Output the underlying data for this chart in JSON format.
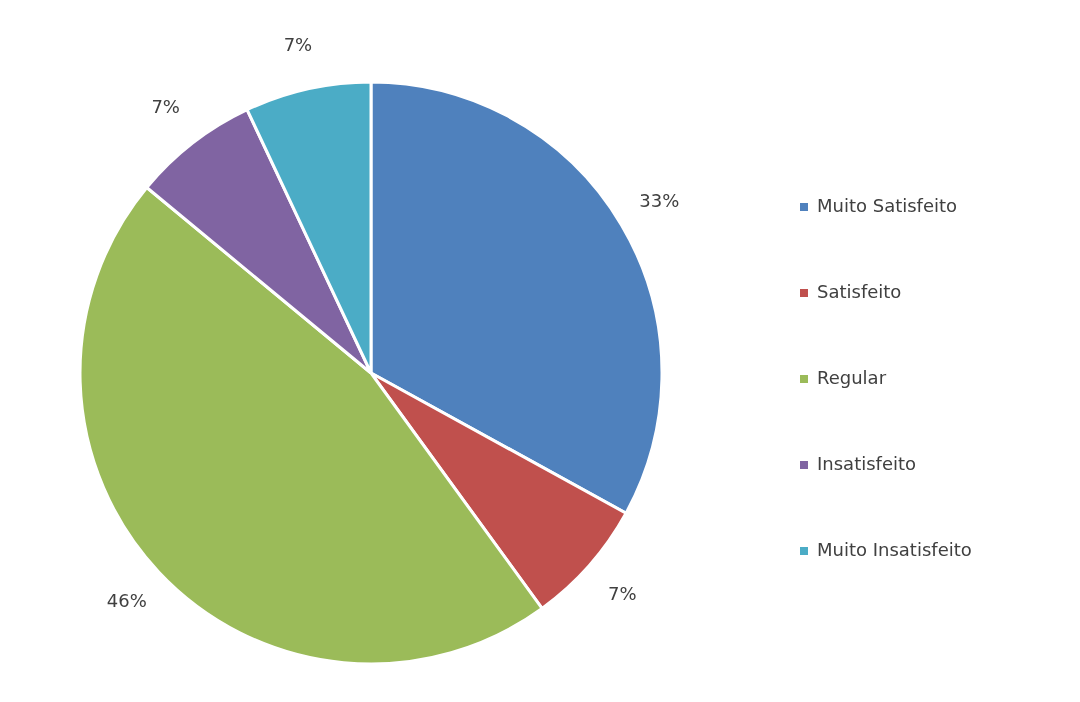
{
  "chart_data": {
    "type": "pie",
    "categories": [
      "Muito Satisfeito",
      "Satisfeito",
      "Regular",
      "Insatisfeito",
      "Muito Insatisfeito"
    ],
    "values": [
      33,
      7,
      46,
      7,
      7
    ],
    "colors": [
      "#4f81bd",
      "#c0504d",
      "#9bbb59",
      "#8064a2",
      "#4bacc6"
    ],
    "value_labels": [
      "33%",
      "7%",
      "46%",
      "7%",
      "7%"
    ],
    "legend": "right"
  }
}
